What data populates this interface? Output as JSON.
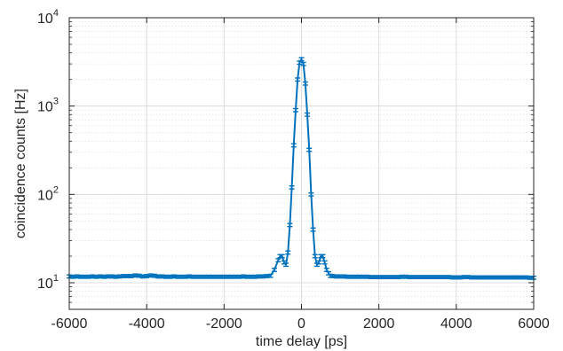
{
  "chart_data": {
    "type": "line",
    "title": "",
    "xlabel": "time delay [ps]",
    "ylabel": "coincidence counts [Hz]",
    "xlim": [
      -6000,
      6000
    ],
    "ylim": [
      5,
      10000
    ],
    "y_scale": "log",
    "grid": true,
    "minor_grid": true,
    "x_ticks": [
      -6000,
      -4000,
      -2000,
      0,
      2000,
      4000,
      6000
    ],
    "x_tick_labels": [
      "-6000",
      "-4000",
      "-2000",
      "0",
      "2000",
      "4000",
      "6000"
    ],
    "y_ticks": [
      10,
      100,
      1000,
      10000
    ],
    "y_tick_labels": [
      {
        "base": "10",
        "exp": "1"
      },
      {
        "base": "10",
        "exp": "2"
      },
      {
        "base": "10",
        "exp": "3"
      },
      {
        "base": "10",
        "exp": "4"
      }
    ],
    "error_bars": true,
    "series": [
      {
        "color": "#0072bd",
        "points": [
          [
            -6000,
            11.8
          ],
          [
            -5900,
            11.7
          ],
          [
            -5800,
            11.8
          ],
          [
            -5700,
            11.7
          ],
          [
            -5600,
            11.7
          ],
          [
            -5500,
            11.7
          ],
          [
            -5400,
            11.8
          ],
          [
            -5300,
            11.7
          ],
          [
            -5200,
            11.8
          ],
          [
            -5100,
            11.7
          ],
          [
            -5000,
            11.8
          ],
          [
            -4900,
            11.8
          ],
          [
            -4800,
            11.7
          ],
          [
            -4700,
            11.8
          ],
          [
            -4600,
            11.9
          ],
          [
            -4500,
            11.9
          ],
          [
            -4400,
            11.9
          ],
          [
            -4300,
            12.1
          ],
          [
            -4200,
            12.0
          ],
          [
            -4100,
            11.8
          ],
          [
            -4000,
            11.9
          ],
          [
            -3900,
            12.1
          ],
          [
            -3800,
            12.0
          ],
          [
            -3700,
            11.8
          ],
          [
            -3600,
            11.8
          ],
          [
            -3500,
            11.7
          ],
          [
            -3400,
            11.7
          ],
          [
            -3300,
            11.8
          ],
          [
            -3200,
            11.7
          ],
          [
            -3100,
            11.7
          ],
          [
            -3000,
            11.7
          ],
          [
            -2900,
            11.8
          ],
          [
            -2800,
            11.7
          ],
          [
            -2700,
            11.7
          ],
          [
            -2600,
            11.7
          ],
          [
            -2500,
            11.7
          ],
          [
            -2400,
            11.7
          ],
          [
            -2300,
            11.7
          ],
          [
            -2200,
            11.7
          ],
          [
            -2100,
            11.7
          ],
          [
            -2000,
            11.7
          ],
          [
            -1900,
            11.7
          ],
          [
            -1800,
            11.7
          ],
          [
            -1700,
            11.7
          ],
          [
            -1600,
            11.7
          ],
          [
            -1500,
            11.8
          ],
          [
            -1400,
            11.7
          ],
          [
            -1300,
            11.7
          ],
          [
            -1200,
            11.7
          ],
          [
            -1100,
            11.8
          ],
          [
            -1000,
            11.8
          ],
          [
            -900,
            11.9
          ],
          [
            -800,
            12.0
          ],
          [
            -700,
            14
          ],
          [
            -600,
            18
          ],
          [
            -550,
            20
          ],
          [
            -500,
            20
          ],
          [
            -450,
            17
          ],
          [
            -400,
            16
          ],
          [
            -350,
            22
          ],
          [
            -300,
            45
          ],
          [
            -250,
            120
          ],
          [
            -200,
            360
          ],
          [
            -150,
            900
          ],
          [
            -100,
            2000
          ],
          [
            -50,
            3100
          ],
          [
            0,
            3400
          ],
          [
            50,
            3000
          ],
          [
            100,
            1800
          ],
          [
            150,
            800
          ],
          [
            200,
            320
          ],
          [
            250,
            100
          ],
          [
            300,
            40
          ],
          [
            350,
            20
          ],
          [
            400,
            16
          ],
          [
            450,
            17
          ],
          [
            500,
            20
          ],
          [
            550,
            20
          ],
          [
            600,
            17
          ],
          [
            650,
            14
          ],
          [
            700,
            12.8
          ],
          [
            750,
            12.0
          ],
          [
            800,
            11.9
          ],
          [
            900,
            11.8
          ],
          [
            1000,
            11.8
          ],
          [
            1100,
            11.8
          ],
          [
            1200,
            11.7
          ],
          [
            1300,
            11.7
          ],
          [
            1400,
            11.7
          ],
          [
            1500,
            11.7
          ],
          [
            1600,
            11.7
          ],
          [
            1700,
            11.7
          ],
          [
            1800,
            11.6
          ],
          [
            1900,
            11.6
          ],
          [
            2000,
            11.6
          ],
          [
            2100,
            11.6
          ],
          [
            2200,
            11.6
          ],
          [
            2300,
            11.6
          ],
          [
            2400,
            11.6
          ],
          [
            2500,
            11.6
          ],
          [
            2600,
            11.7
          ],
          [
            2700,
            11.7
          ],
          [
            2800,
            11.6
          ],
          [
            2900,
            11.6
          ],
          [
            3000,
            11.6
          ],
          [
            3100,
            11.6
          ],
          [
            3200,
            11.6
          ],
          [
            3300,
            11.6
          ],
          [
            3400,
            11.6
          ],
          [
            3500,
            11.6
          ],
          [
            3600,
            11.6
          ],
          [
            3700,
            11.6
          ],
          [
            3800,
            11.6
          ],
          [
            3900,
            11.5
          ],
          [
            4000,
            11.5
          ],
          [
            4100,
            11.5
          ],
          [
            4200,
            11.6
          ],
          [
            4300,
            11.6
          ],
          [
            4400,
            11.5
          ],
          [
            4500,
            11.5
          ],
          [
            4600,
            11.5
          ],
          [
            4700,
            11.5
          ],
          [
            4800,
            11.5
          ],
          [
            4900,
            11.5
          ],
          [
            5000,
            11.5
          ],
          [
            5100,
            11.5
          ],
          [
            5200,
            11.5
          ],
          [
            5300,
            11.5
          ],
          [
            5400,
            11.5
          ],
          [
            5500,
            11.5
          ],
          [
            5600,
            11.5
          ],
          [
            5700,
            11.5
          ],
          [
            5800,
            11.5
          ],
          [
            5900,
            11.4
          ],
          [
            6000,
            11.4
          ]
        ]
      }
    ]
  }
}
